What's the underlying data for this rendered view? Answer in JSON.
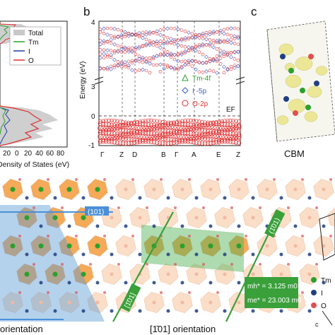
{
  "panels": {
    "b_letter": "b",
    "c_letter": "c"
  },
  "dos": {
    "legend": [
      "Total",
      "Tm",
      "I",
      "O"
    ],
    "colors": {
      "Total": "#c8c8c8",
      "Tm": "#2ca02c",
      "I": "#1f3f9f",
      "O": "#e03030"
    },
    "x_ticks": [
      "20",
      "0",
      "20",
      "40",
      "60",
      "80"
    ],
    "xlabel": "Density of States (eV)"
  },
  "bands": {
    "ylabel": "Energy (eV)",
    "y_ticks": [
      "4",
      "3",
      "0",
      "-1"
    ],
    "k_labels": [
      "Γ",
      "Z",
      "D",
      "B",
      "Γ",
      "A",
      "E",
      "Z"
    ],
    "fermi_label": "EF",
    "legend": [
      {
        "label": "Tm-4f",
        "color": "#2ca02c",
        "marker": "triangle"
      },
      {
        "label": "I -5p",
        "color": "#3a5fcd",
        "marker": "diamond"
      },
      {
        "label": "O-2p",
        "color": "#e03030",
        "marker": "circle"
      }
    ]
  },
  "cbm": {
    "label": "CBM"
  },
  "structure": {
    "left_label": "(101)",
    "right_label": "(1̄01)",
    "diag_label": "[1̄01]",
    "mass_h": "mh* = 3.125 m0",
    "mass_e": "me* = 23.003 m0",
    "orientation_left": "orientation",
    "orientation_right": "[1̄01] orientation",
    "legend": [
      {
        "label": "Tm",
        "color": "#2ca02c"
      },
      {
        "label": "I",
        "color": "#1f3f7f"
      },
      {
        "label": "O",
        "color": "#e05050"
      }
    ]
  }
}
